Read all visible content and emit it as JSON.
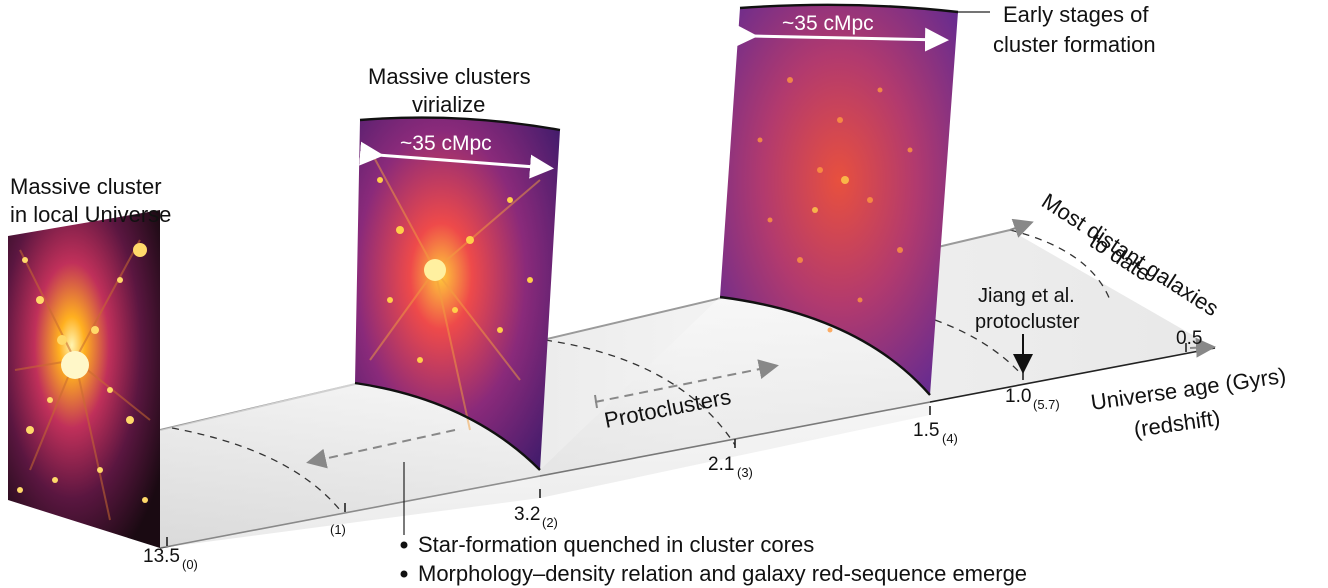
{
  "labels": {
    "local_cluster_line1": "Massive cluster",
    "local_cluster_line2": "in local Universe",
    "virialize_line1": "Massive clusters",
    "virialize_line2": "virialize",
    "early_line1": "Early stages of",
    "early_line2": "cluster formation",
    "distant_line1": "Most distant galaxies",
    "distant_line2": "to date",
    "jiang_line1": "Jiang et al.",
    "jiang_line2": "protocluster",
    "protoclusters": "Protoclusters",
    "axis_line1": "Universe age (Gyrs)",
    "axis_line2": "(redshift)"
  },
  "scale_bar_label": "~35 cMpc",
  "ticks": [
    {
      "age": "13.5",
      "redshift": "(0)"
    },
    {
      "age": "",
      "redshift": "(1)"
    },
    {
      "age": "3.2",
      "redshift": "(2)"
    },
    {
      "age": "2.1",
      "redshift": "(3)"
    },
    {
      "age": "1.5",
      "redshift": "(4)"
    },
    {
      "age": "1.0",
      "redshift": "(5.7)"
    },
    {
      "age": "0.5",
      "redshift": ""
    }
  ],
  "bullets": [
    "Star-formation quenched in cluster cores",
    "Morphology–density relation and galaxy red-sequence emerge"
  ],
  "colors": {
    "panel_local_bg": "#1a0a12",
    "panel_mid_bg": "#4a1a6e",
    "panel_early_bg": "#6a2c8e",
    "bright": "#ffd34a",
    "arrow_gray": "#8a8a8a"
  }
}
